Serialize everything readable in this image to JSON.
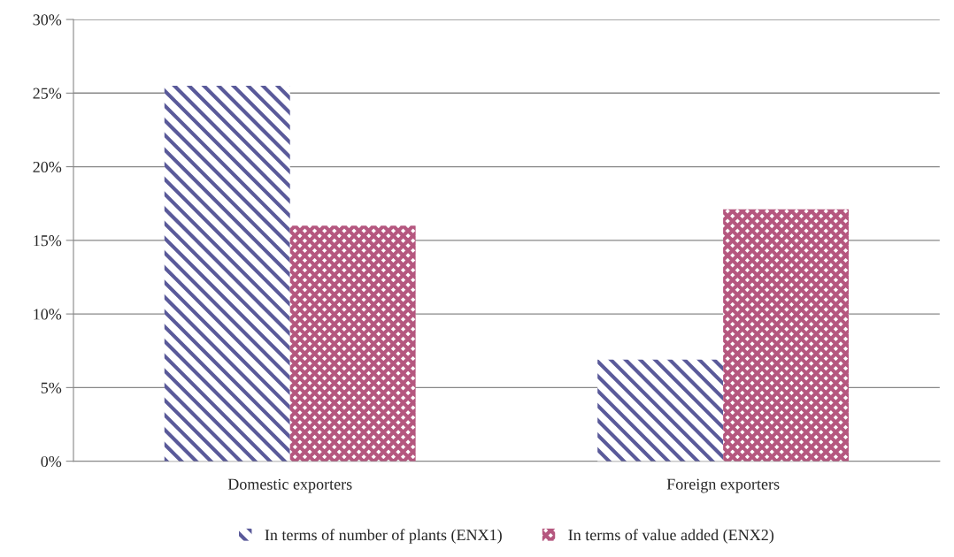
{
  "chart_data": {
    "type": "bar",
    "categories": [
      "Domestic exporters",
      "Foreign exporters"
    ],
    "series": [
      {
        "name": "In terms of number of plants (ENX1)",
        "color": "#5a5a9a",
        "values": [
          25.5,
          6.9
        ]
      },
      {
        "name": "In terms of value added (ENX2)",
        "color": "#b5577f",
        "values": [
          16,
          17.1
        ]
      }
    ],
    "ylim": [
      0,
      30
    ],
    "yticks": [
      {
        "value": 0,
        "label": "0%"
      },
      {
        "value": 5,
        "label": "5%"
      },
      {
        "value": 10,
        "label": "10%"
      },
      {
        "value": 15,
        "label": "15%"
      },
      {
        "value": 20,
        "label": "20%"
      },
      {
        "value": 25,
        "label": "25%"
      },
      {
        "value": 30,
        "label": "30%"
      }
    ],
    "grid": "y",
    "legend": "bottom"
  }
}
